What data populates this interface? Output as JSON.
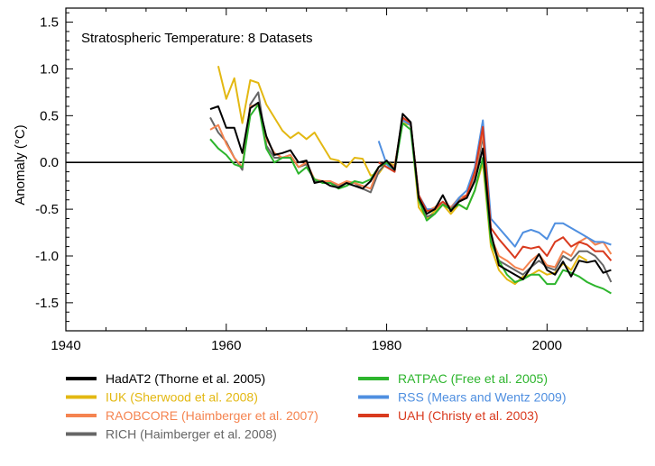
{
  "chart_data": {
    "type": "line",
    "title": "Stratospheric Temperature: 8 Datasets",
    "xlabel": "",
    "ylabel": "Anomaly (°C)",
    "xlim": [
      1940,
      2012
    ],
    "ylim": [
      -1.8,
      1.65
    ],
    "x_ticks": [
      1940,
      1960,
      1980,
      2000
    ],
    "y_ticks": [
      -1.5,
      -1.0,
      -0.5,
      0.0,
      0.5,
      1.0,
      1.5
    ],
    "x_tick_labels": [
      "1940",
      "1960",
      "1980",
      "2000"
    ],
    "y_tick_labels": [
      "-1.5",
      "-1.0",
      "-0.5",
      "0.0",
      "0.5",
      "1.0",
      "1.5"
    ],
    "zero_line": true,
    "grid": false,
    "legend_position": "bottom",
    "series": [
      {
        "name": "HadAT2 (Thorne et al. 2005)",
        "color": "#000000",
        "x": [
          1958,
          1959,
          1960,
          1961,
          1962,
          1963,
          1964,
          1965,
          1966,
          1967,
          1968,
          1969,
          1970,
          1971,
          1972,
          1973,
          1974,
          1975,
          1976,
          1977,
          1978,
          1979,
          1980,
          1981,
          1982,
          1983,
          1984,
          1985,
          1986,
          1987,
          1988,
          1989,
          1990,
          1991,
          1992,
          1993,
          1994,
          1995,
          1996,
          1997,
          1998,
          1999,
          2000,
          2001,
          2002,
          2003,
          2004,
          2005,
          2006,
          2007,
          2008
        ],
        "y": [
          0.57,
          0.6,
          0.37,
          0.37,
          0.1,
          0.58,
          0.64,
          0.28,
          0.08,
          0.1,
          0.13,
          0.0,
          0.02,
          -0.22,
          -0.2,
          -0.25,
          -0.27,
          -0.22,
          -0.25,
          -0.28,
          -0.2,
          -0.05,
          0.02,
          -0.08,
          0.52,
          0.43,
          -0.38,
          -0.55,
          -0.5,
          -0.35,
          -0.52,
          -0.42,
          -0.38,
          -0.2,
          0.15,
          -0.75,
          -1.1,
          -1.15,
          -1.2,
          -1.25,
          -1.12,
          -0.98,
          -1.15,
          -1.2,
          -1.06,
          -1.22,
          -1.05,
          -1.07,
          -1.05,
          -1.18,
          -1.15
        ]
      },
      {
        "name": "IUK (Sherwood et al. 2008)",
        "color": "#e3b812",
        "x": [
          1959,
          1960,
          1961,
          1962,
          1963,
          1964,
          1965,
          1966,
          1967,
          1968,
          1969,
          1970,
          1971,
          1972,
          1973,
          1974,
          1975,
          1976,
          1977,
          1978,
          1979,
          1980,
          1981,
          1982,
          1983,
          1984,
          1985,
          1986,
          1987,
          1988,
          1989,
          1990,
          1991,
          1992,
          1993,
          1994,
          1995,
          1996,
          1997,
          1998,
          1999,
          2000,
          2001,
          2002,
          2003,
          2004,
          2005
        ],
        "y": [
          1.03,
          0.68,
          0.9,
          0.42,
          0.88,
          0.85,
          0.62,
          0.48,
          0.34,
          0.26,
          0.32,
          0.25,
          0.32,
          0.18,
          0.04,
          0.02,
          -0.05,
          0.05,
          0.04,
          -0.14,
          -0.12,
          0.0,
          -0.03,
          0.42,
          0.4,
          -0.48,
          -0.6,
          -0.52,
          -0.45,
          -0.55,
          -0.45,
          -0.5,
          -0.3,
          0.0,
          -0.9,
          -1.15,
          -1.25,
          -1.3,
          -1.22,
          -1.2,
          -1.15,
          -1.2,
          -1.18,
          -1.08,
          -1.15,
          -1.0,
          -1.05
        ]
      },
      {
        "name": "RAOBCORE (Haimberger et al. 2007)",
        "color": "#f58450",
        "x": [
          1958,
          1959,
          1960,
          1961,
          1962,
          1963,
          1964,
          1965,
          1966,
          1967,
          1968,
          1969,
          1970,
          1971,
          1972,
          1973,
          1974,
          1975,
          1976,
          1977,
          1978,
          1979,
          1980,
          1981,
          1982,
          1983,
          1984,
          1985,
          1986,
          1987,
          1988,
          1989,
          1990,
          1991,
          1992,
          1993,
          1994,
          1995,
          1996,
          1997,
          1998,
          1999,
          2000,
          2001,
          2002,
          2003,
          2004,
          2005,
          2006,
          2007,
          2008
        ],
        "y": [
          0.35,
          0.4,
          0.2,
          0.05,
          -0.05,
          0.6,
          0.62,
          0.25,
          0.1,
          0.05,
          0.08,
          -0.05,
          0.0,
          -0.18,
          -0.2,
          -0.2,
          -0.24,
          -0.2,
          -0.22,
          -0.25,
          -0.28,
          -0.05,
          0.0,
          -0.05,
          0.48,
          0.4,
          -0.35,
          -0.52,
          -0.48,
          -0.42,
          -0.48,
          -0.38,
          -0.35,
          -0.12,
          0.32,
          -0.8,
          -1.0,
          -1.05,
          -1.12,
          -1.15,
          -1.05,
          -0.98,
          -1.1,
          -1.12,
          -0.95,
          -1.0,
          -0.85,
          -0.8,
          -0.88,
          -0.85,
          -0.98
        ]
      },
      {
        "name": "RICH (Haimberger et al. 2008)",
        "color": "#666666",
        "x": [
          1958,
          1959,
          1960,
          1961,
          1962,
          1963,
          1964,
          1965,
          1966,
          1967,
          1968,
          1969,
          1970,
          1971,
          1972,
          1973,
          1974,
          1975,
          1976,
          1977,
          1978,
          1979,
          1980,
          1981,
          1982,
          1983,
          1984,
          1985,
          1986,
          1987,
          1988,
          1989,
          1990,
          1991,
          1992,
          1993,
          1994,
          1995,
          1996,
          1997,
          1998,
          1999,
          2000,
          2001,
          2002,
          2003,
          2004,
          2005,
          2006,
          2007,
          2008
        ],
        "y": [
          0.48,
          0.32,
          0.22,
          0.05,
          -0.08,
          0.62,
          0.75,
          0.18,
          0.05,
          0.05,
          0.08,
          -0.05,
          -0.02,
          -0.2,
          -0.2,
          -0.22,
          -0.25,
          -0.22,
          -0.22,
          -0.28,
          -0.32,
          -0.1,
          0.0,
          -0.05,
          0.48,
          0.4,
          -0.4,
          -0.58,
          -0.55,
          -0.45,
          -0.5,
          -0.4,
          -0.38,
          -0.18,
          0.28,
          -0.8,
          -1.05,
          -1.1,
          -1.15,
          -1.2,
          -1.12,
          -1.05,
          -1.12,
          -1.15,
          -1.0,
          -1.05,
          -0.95,
          -0.95,
          -1.0,
          -1.1,
          -1.28
        ]
      },
      {
        "name": "RATPAC (Free et al. 2005)",
        "color": "#2db52d",
        "x": [
          1958,
          1959,
          1960,
          1961,
          1962,
          1963,
          1964,
          1965,
          1966,
          1967,
          1968,
          1969,
          1970,
          1971,
          1972,
          1973,
          1974,
          1975,
          1976,
          1977,
          1978,
          1979,
          1980,
          1981,
          1982,
          1983,
          1984,
          1985,
          1986,
          1987,
          1988,
          1989,
          1990,
          1991,
          1992,
          1993,
          1994,
          1995,
          1996,
          1997,
          1998,
          1999,
          2000,
          2001,
          2002,
          2003,
          2004,
          2005,
          2006,
          2007,
          2008
        ],
        "y": [
          0.25,
          0.15,
          0.08,
          -0.02,
          -0.05,
          0.5,
          0.62,
          0.15,
          0.0,
          0.05,
          0.05,
          -0.12,
          -0.05,
          -0.18,
          -0.22,
          -0.22,
          -0.28,
          -0.25,
          -0.2,
          -0.22,
          -0.18,
          -0.05,
          0.0,
          -0.08,
          0.42,
          0.35,
          -0.4,
          -0.62,
          -0.55,
          -0.45,
          -0.5,
          -0.45,
          -0.5,
          -0.3,
          0.05,
          -0.85,
          -1.05,
          -1.2,
          -1.28,
          -1.25,
          -1.2,
          -1.2,
          -1.3,
          -1.3,
          -1.15,
          -1.18,
          -1.22,
          -1.28,
          -1.32,
          -1.35,
          -1.4
        ]
      },
      {
        "name": "RSS (Mears and Wentz 2009)",
        "color": "#4f8fe0",
        "x": [
          1979,
          1980,
          1981,
          1982,
          1983,
          1984,
          1985,
          1986,
          1987,
          1988,
          1989,
          1990,
          1991,
          1992,
          1993,
          1994,
          1995,
          1996,
          1997,
          1998,
          1999,
          2000,
          2001,
          2002,
          2003,
          2004,
          2005,
          2006,
          2007,
          2008
        ],
        "y": [
          0.23,
          -0.02,
          -0.1,
          0.45,
          0.4,
          -0.35,
          -0.5,
          -0.5,
          -0.42,
          -0.5,
          -0.38,
          -0.3,
          -0.05,
          0.45,
          -0.6,
          -0.7,
          -0.8,
          -0.9,
          -0.75,
          -0.72,
          -0.75,
          -0.82,
          -0.65,
          -0.65,
          -0.7,
          -0.75,
          -0.8,
          -0.85,
          -0.85,
          -0.88
        ]
      },
      {
        "name": "UAH (Christy et al. 2003)",
        "color": "#d93a1e",
        "x": [
          1979,
          1980,
          1981,
          1982,
          1983,
          1984,
          1985,
          1986,
          1987,
          1988,
          1989,
          1990,
          1991,
          1992,
          1993,
          1994,
          1995,
          1996,
          1997,
          1998,
          1999,
          2000,
          2001,
          2002,
          2003,
          2004,
          2005,
          2006,
          2007,
          2008
        ],
        "y": [
          0.0,
          -0.05,
          -0.1,
          0.48,
          0.42,
          -0.35,
          -0.52,
          -0.5,
          -0.42,
          -0.5,
          -0.42,
          -0.35,
          -0.1,
          0.38,
          -0.7,
          -0.82,
          -0.92,
          -1.02,
          -0.9,
          -0.92,
          -0.9,
          -1.0,
          -0.85,
          -0.8,
          -0.9,
          -0.85,
          -0.88,
          -0.95,
          -0.95,
          -1.05
        ]
      }
    ]
  }
}
